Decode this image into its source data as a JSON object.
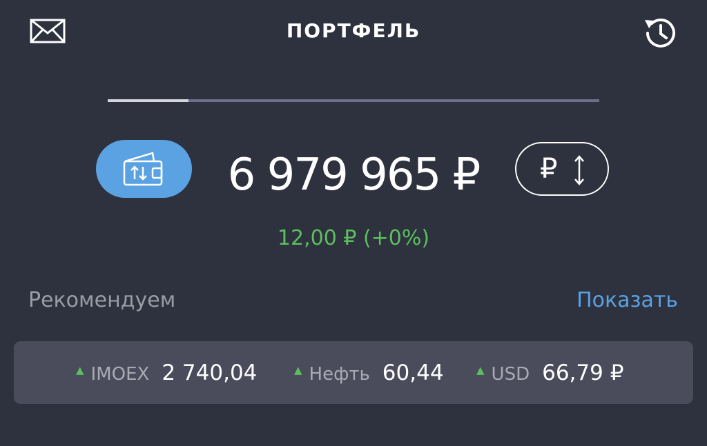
{
  "header": {
    "title": "ПОРТФЕЛЬ",
    "left_icon": "mail-icon",
    "right_icon": "history-icon"
  },
  "pager": {
    "pages_progress": 0.165
  },
  "portfolio": {
    "balance": "6 979 965 ₽",
    "change": "12,00 ₽ (+0%)",
    "wallet_icon": "wallet-transfer-icon",
    "currency_symbol": "₽",
    "currency_toggle_icon": "up-down-arrows-icon"
  },
  "recommend": {
    "label": "Рекомендуем",
    "link": "Показать"
  },
  "ticker": [
    {
      "arrow": "▲",
      "name": "IMOEX",
      "value": "2 740,04"
    },
    {
      "arrow": "▲",
      "name": "Нефть",
      "value": "60,44"
    },
    {
      "arrow": "▲",
      "name": "USD",
      "value": "66,79 ₽"
    }
  ],
  "colors": {
    "background": "#2e313e",
    "accent_blue": "#5ba2e2",
    "positive_green": "#5cbf5e",
    "ticker_bg": "#4a4c5b"
  }
}
